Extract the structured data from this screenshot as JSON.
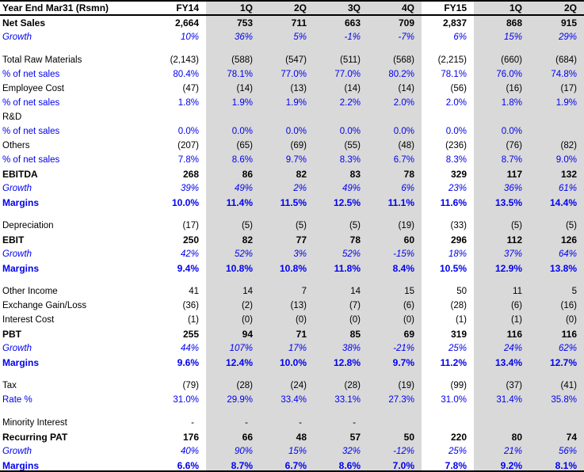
{
  "colors": {
    "accent_blue_text": "#0000EE",
    "shaded_column_bg": "#D9D9D9",
    "border_black": "#000000",
    "background": "#FFFFFF"
  },
  "table": {
    "title_cell": "Year End Mar31 (Rsmn)",
    "columns": [
      "FY14",
      "1Q",
      "2Q",
      "3Q",
      "4Q",
      "FY15",
      "1Q",
      "2Q"
    ],
    "shaded_columns": [
      1,
      2,
      3,
      4,
      6,
      7
    ],
    "rows": [
      {
        "label": "Net Sales",
        "style": "bold",
        "values": [
          "2,664",
          "753",
          "711",
          "663",
          "709",
          "2,837",
          "868",
          "915"
        ]
      },
      {
        "label": "Growth",
        "style": "growth",
        "values": [
          "10%",
          "36%",
          "5%",
          "-1%",
          "-7%",
          "6%",
          "15%",
          "29%"
        ]
      },
      {
        "style": "spacer"
      },
      {
        "label": "Total Raw Materials",
        "style": "plain",
        "values": [
          "(2,143)",
          "(588)",
          "(547)",
          "(511)",
          "(568)",
          "(2,215)",
          "(660)",
          "(684)"
        ]
      },
      {
        "label": "% of net sales",
        "style": "pct",
        "values": [
          "80.4%",
          "78.1%",
          "77.0%",
          "77.0%",
          "80.2%",
          "78.1%",
          "76.0%",
          "74.8%"
        ]
      },
      {
        "label": "Employee Cost",
        "style": "plain",
        "values": [
          "(47)",
          "(14)",
          "(13)",
          "(14)",
          "(14)",
          "(56)",
          "(16)",
          "(17)"
        ]
      },
      {
        "label": "% of net sales",
        "style": "pct",
        "values": [
          "1.8%",
          "1.9%",
          "1.9%",
          "2.2%",
          "2.0%",
          "2.0%",
          "1.8%",
          "1.9%"
        ]
      },
      {
        "label": "R&D",
        "style": "plain",
        "values": [
          "",
          "",
          "",
          "",
          "",
          "",
          "",
          ""
        ]
      },
      {
        "label": "% of net sales",
        "style": "pct",
        "values": [
          "0.0%",
          "0.0%",
          "0.0%",
          "0.0%",
          "0.0%",
          "0.0%",
          "0.0%",
          ""
        ]
      },
      {
        "label": "Others",
        "style": "plain",
        "values": [
          "(207)",
          "(65)",
          "(69)",
          "(55)",
          "(48)",
          "(236)",
          "(76)",
          "(82)"
        ]
      },
      {
        "label": "% of net sales",
        "style": "pct",
        "values": [
          "7.8%",
          "8.6%",
          "9.7%",
          "8.3%",
          "6.7%",
          "8.3%",
          "8.7%",
          "9.0%"
        ]
      },
      {
        "label": "EBITDA",
        "style": "bold",
        "values": [
          "268",
          "86",
          "82",
          "83",
          "78",
          "329",
          "117",
          "132"
        ]
      },
      {
        "label": "Growth",
        "style": "growth",
        "values": [
          "39%",
          "49%",
          "2%",
          "49%",
          "6%",
          "23%",
          "36%",
          "61%"
        ]
      },
      {
        "label": "Margins",
        "style": "margins",
        "values": [
          "10.0%",
          "11.4%",
          "11.5%",
          "12.5%",
          "11.1%",
          "11.6%",
          "13.5%",
          "14.4%"
        ]
      },
      {
        "style": "spacer"
      },
      {
        "label": "Depreciation",
        "style": "plain",
        "values": [
          "(17)",
          "(5)",
          "(5)",
          "(5)",
          "(19)",
          "(33)",
          "(5)",
          "(5)"
        ]
      },
      {
        "label": "EBIT",
        "style": "bold",
        "values": [
          "250",
          "82",
          "77",
          "78",
          "60",
          "296",
          "112",
          "126"
        ]
      },
      {
        "label": "Growth",
        "style": "growth",
        "values": [
          "42%",
          "52%",
          "3%",
          "52%",
          "-15%",
          "18%",
          "37%",
          "64%"
        ]
      },
      {
        "label": "Margins",
        "style": "margins",
        "values": [
          "9.4%",
          "10.8%",
          "10.8%",
          "11.8%",
          "8.4%",
          "10.5%",
          "12.9%",
          "13.8%"
        ]
      },
      {
        "style": "spacer"
      },
      {
        "label": "Other Income",
        "style": "plain",
        "values": [
          "41",
          "14",
          "7",
          "14",
          "15",
          "50",
          "11",
          "5"
        ]
      },
      {
        "label": "Exchange Gain/Loss",
        "style": "plain",
        "values": [
          "(36)",
          "(2)",
          "(13)",
          "(7)",
          "(6)",
          "(28)",
          "(6)",
          "(16)"
        ]
      },
      {
        "label": "Interest Cost",
        "style": "plain",
        "values": [
          "(1)",
          "(0)",
          "(0)",
          "(0)",
          "(0)",
          "(1)",
          "(1)",
          "(0)"
        ]
      },
      {
        "label": "PBT",
        "style": "bold",
        "values": [
          "255",
          "94",
          "71",
          "85",
          "69",
          "319",
          "116",
          "116"
        ]
      },
      {
        "label": "Growth",
        "style": "growth",
        "values": [
          "44%",
          "107%",
          "17%",
          "38%",
          "-21%",
          "25%",
          "24%",
          "62%"
        ]
      },
      {
        "label": "Margins",
        "style": "margins",
        "values": [
          "9.6%",
          "12.4%",
          "10.0%",
          "12.8%",
          "9.7%",
          "11.2%",
          "13.4%",
          "12.7%"
        ]
      },
      {
        "style": "spacer"
      },
      {
        "label": "Tax",
        "style": "plain",
        "values": [
          "(79)",
          "(28)",
          "(24)",
          "(28)",
          "(19)",
          "(99)",
          "(37)",
          "(41)"
        ]
      },
      {
        "label": "Rate %",
        "style": "pct",
        "values": [
          "31.0%",
          "29.9%",
          "33.4%",
          "33.1%",
          "27.3%",
          "31.0%",
          "31.4%",
          "35.8%"
        ]
      },
      {
        "style": "spacer"
      },
      {
        "label": "Minority Interest",
        "style": "plain",
        "values": [
          "-",
          "-",
          "-",
          "-",
          "",
          "",
          "",
          ""
        ]
      },
      {
        "label": "Recurring PAT",
        "style": "bold",
        "values": [
          "176",
          "66",
          "48",
          "57",
          "50",
          "220",
          "80",
          "74"
        ]
      },
      {
        "label": "Growth",
        "style": "growth",
        "values": [
          "40%",
          "90%",
          "15%",
          "32%",
          "-12%",
          "25%",
          "21%",
          "56%"
        ]
      },
      {
        "label": "Margins",
        "style": "margins",
        "values": [
          "6.6%",
          "8.7%",
          "6.7%",
          "8.6%",
          "7.0%",
          "7.8%",
          "9.2%",
          "8.1%"
        ]
      }
    ]
  }
}
